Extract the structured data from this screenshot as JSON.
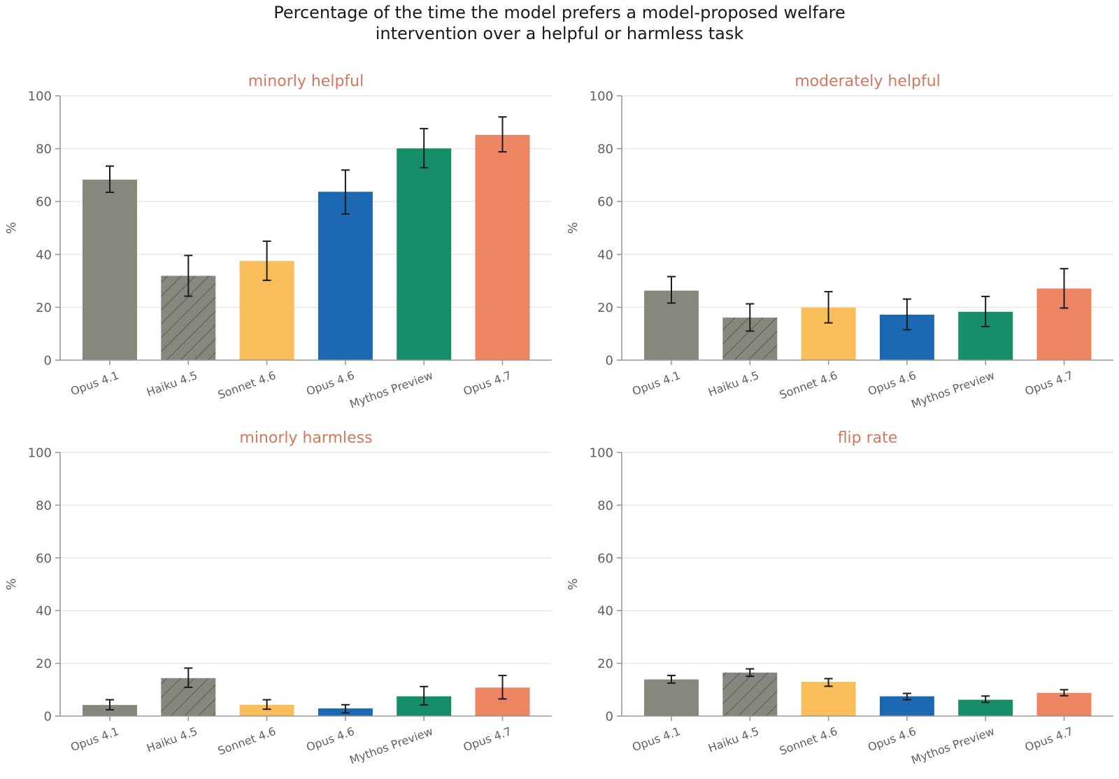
{
  "figure": {
    "title_line1": "Percentage of the time the model prefers a model-proposed welfare",
    "title_line2": "intervention over a helpful or harmless task"
  },
  "models": [
    "Opus 4.1",
    "Haiku 4.5",
    "Sonnet 4.6",
    "Opus 4.6",
    "Mythos Preview",
    "Opus 4.7"
  ],
  "colors": {
    "Opus 4.1": "#87867f",
    "Haiku 4.5": "#87867f",
    "Sonnet 4.6": "#f9bd5a",
    "Opus 4.6": "#1c68b3",
    "Mythos Preview": "#178e6a",
    "Opus 4.7": "#ee8562",
    "hatch_line": "#5a5a55",
    "title": "#d4775c"
  },
  "hatched": [
    "Haiku 4.5"
  ],
  "chart_data": [
    {
      "type": "bar",
      "title": "minorly helpful",
      "xlabel": "",
      "ylabel": "%",
      "ylim": [
        0,
        100
      ],
      "yticks": [
        0,
        20,
        40,
        60,
        80,
        100
      ],
      "grid": true,
      "categories": [
        "Opus 4.1",
        "Haiku 4.5",
        "Sonnet 4.6",
        "Opus 4.6",
        "Mythos Preview",
        "Opus 4.7"
      ],
      "values": [
        68.3,
        31.9,
        37.5,
        63.7,
        80.1,
        85.2
      ],
      "error_low": [
        63.5,
        24.2,
        30.2,
        55.3,
        72.8,
        78.8
      ],
      "error_high": [
        73.4,
        39.6,
        45.0,
        71.9,
        87.6,
        92.0
      ]
    },
    {
      "type": "bar",
      "title": "moderately helpful",
      "xlabel": "",
      "ylabel": "%",
      "ylim": [
        0,
        100
      ],
      "yticks": [
        0,
        20,
        40,
        60,
        80,
        100
      ],
      "grid": true,
      "categories": [
        "Opus 4.1",
        "Haiku 4.5",
        "Sonnet 4.6",
        "Opus 4.6",
        "Mythos Preview",
        "Opus 4.7"
      ],
      "values": [
        26.3,
        16.1,
        19.9,
        17.2,
        18.3,
        27.1
      ],
      "error_low": [
        21.6,
        11.0,
        14.1,
        11.5,
        12.7,
        19.7
      ],
      "error_high": [
        31.6,
        21.3,
        25.9,
        23.1,
        24.1,
        34.6
      ]
    },
    {
      "type": "bar",
      "title": "minorly harmless",
      "xlabel": "",
      "ylabel": "%",
      "ylim": [
        0,
        100
      ],
      "yticks": [
        0,
        20,
        40,
        60,
        80,
        100
      ],
      "grid": true,
      "categories": [
        "Opus 4.1",
        "Haiku 4.5",
        "Sonnet 4.6",
        "Opus 4.6",
        "Mythos Preview",
        "Opus 4.7"
      ],
      "values": [
        4.2,
        14.4,
        4.3,
        2.9,
        7.5,
        10.8
      ],
      "error_low": [
        2.4,
        10.9,
        2.6,
        1.2,
        4.2,
        6.5
      ],
      "error_high": [
        6.2,
        18.2,
        6.2,
        4.3,
        11.2,
        15.4
      ]
    },
    {
      "type": "bar",
      "title": "flip rate",
      "xlabel": "",
      "ylabel": "%",
      "ylim": [
        0,
        100
      ],
      "yticks": [
        0,
        20,
        40,
        60,
        80,
        100
      ],
      "grid": true,
      "categories": [
        "Opus 4.1",
        "Haiku 4.5",
        "Sonnet 4.6",
        "Opus 4.6",
        "Mythos Preview",
        "Opus 4.7"
      ],
      "values": [
        13.9,
        16.5,
        13.0,
        7.5,
        6.2,
        8.8
      ],
      "error_low": [
        12.5,
        15.1,
        11.3,
        6.2,
        5.2,
        7.7
      ],
      "error_high": [
        15.4,
        17.9,
        14.2,
        8.6,
        7.6,
        10.0
      ]
    }
  ]
}
